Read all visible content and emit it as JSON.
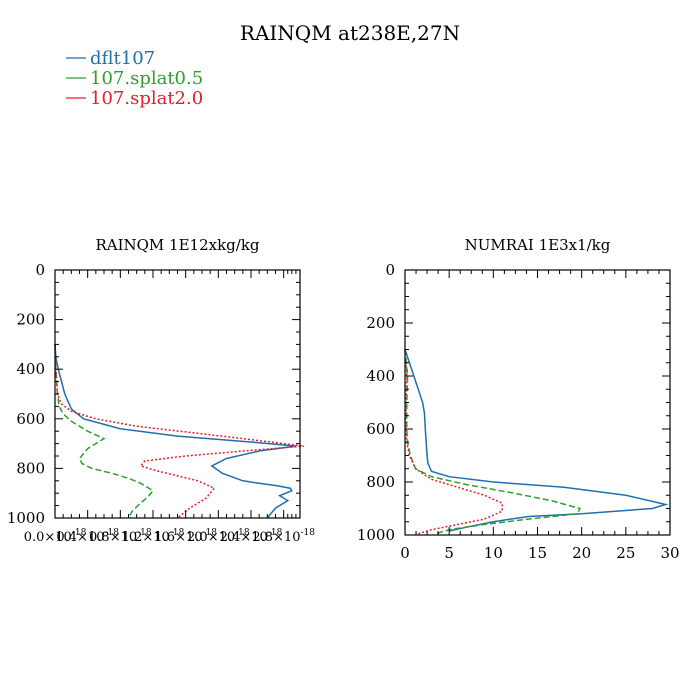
{
  "title": "RAINQM at238E,27N",
  "legend": [
    {
      "label": "dflt107",
      "color": "#1f6fae"
    },
    {
      "label": "107.splat0.5",
      "color": "#2ca02c"
    },
    {
      "label": "107.splat2.0",
      "color": "#e0202a"
    }
  ],
  "chart_data": [
    {
      "type": "line",
      "title": "RAINQM  1E12xkg/kg",
      "xlabel": "",
      "ylabel": "",
      "xlim": [
        0,
        3e-18
      ],
      "ylim": [
        0,
        1000
      ],
      "y_inverted": true,
      "x_ticks": [
        0,
        4e-19,
        8e-19,
        1.2e-18,
        1.6e-18,
        2e-18,
        2.4e-18,
        2.8e-18
      ],
      "x_tick_labels": [
        "0.0×10",
        "0.4×10",
        "0.8×10",
        "1.2×10",
        "1.6×10",
        "2.0×10",
        "2.4×10",
        "2.8×10"
      ],
      "x_tick_exponent": "-18",
      "y_ticks": [
        0,
        200,
        400,
        600,
        800,
        1000
      ],
      "y_tick_labels": [
        "0",
        "200",
        "400",
        "600",
        "800",
        "1000"
      ],
      "series": [
        {
          "name": "dflt107",
          "color": "#1f6fae",
          "dash": "solid",
          "x": [
            0,
            1e-20,
            4e-20,
            8e-20,
            1.2e-19,
            2e-19,
            3.5e-19,
            8e-19,
            1.5e-18,
            2.45e-18,
            2.95e-18,
            2.5e-18,
            2.1e-18,
            1.92e-18,
            2.05e-18,
            2.3e-18,
            2.5e-18,
            2.72e-18,
            2.88e-18,
            2.9e-18,
            2.75e-18,
            2.85e-18,
            2.7e-18,
            2.6e-18
          ],
          "y": [
            300,
            350,
            400,
            450,
            500,
            560,
            600,
            640,
            670,
            695,
            710,
            730,
            760,
            790,
            820,
            850,
            860,
            870,
            880,
            890,
            910,
            930,
            960,
            1000
          ]
        },
        {
          "name": "107.splat0.5",
          "color": "#2ca02c",
          "dash": "dashed",
          "x": [
            0,
            1e-20,
            3e-20,
            5e-20,
            1e-19,
            2e-19,
            4e-19,
            6e-19,
            4e-19,
            3e-19,
            3.3e-19,
            4.5e-19,
            7e-19,
            9e-19,
            1.05e-18,
            1.2e-18,
            1.15e-18,
            1.05e-18,
            9.5e-19,
            9e-19
          ],
          "y": [
            300,
            400,
            500,
            550,
            580,
            610,
            650,
            680,
            720,
            760,
            780,
            800,
            820,
            840,
            860,
            890,
            910,
            940,
            970,
            1000
          ]
        },
        {
          "name": "107.splat2.0",
          "color": "#e0202a",
          "dash": "dotted",
          "x": [
            0,
            1e-20,
            3e-20,
            8e-20,
            2e-19,
            5e-19,
            1e-18,
            2.05e-18,
            3.05e-18,
            2.3e-18,
            1.6e-18,
            1.1e-18,
            1.05e-18,
            1.25e-18,
            1.5e-18,
            1.75e-18,
            1.95e-18,
            1.85e-18,
            1.65e-18,
            1.5e-18
          ],
          "y": [
            300,
            400,
            500,
            540,
            570,
            600,
            630,
            670,
            710,
            730,
            750,
            770,
            790,
            810,
            830,
            850,
            880,
            920,
            960,
            1000
          ]
        }
      ]
    },
    {
      "type": "line",
      "title": "NUMRAI  1E3x1/kg",
      "xlabel": "",
      "ylabel": "",
      "xlim": [
        0,
        30
      ],
      "ylim": [
        0,
        1000
      ],
      "y_inverted": true,
      "x_ticks": [
        0,
        5,
        10,
        15,
        20,
        25,
        30
      ],
      "x_tick_labels": [
        "0",
        "5",
        "10",
        "15",
        "20",
        "25",
        "30"
      ],
      "y_ticks": [
        0,
        200,
        400,
        600,
        800,
        1000
      ],
      "y_tick_labels": [
        "0",
        "200",
        "400",
        "600",
        "800",
        "1000"
      ],
      "series": [
        {
          "name": "dflt107",
          "color": "#1f6fae",
          "dash": "solid",
          "x": [
            0,
            0.5,
            1,
            1.5,
            2,
            2.2,
            2.3,
            2.4,
            2.5,
            2.6,
            3,
            5,
            10,
            18,
            25,
            29.5,
            28,
            20,
            14,
            10,
            7,
            5
          ],
          "y": [
            300,
            350,
            400,
            450,
            500,
            540,
            600,
            650,
            700,
            730,
            760,
            780,
            800,
            820,
            850,
            885,
            900,
            920,
            930,
            950,
            970,
            985
          ]
        },
        {
          "name": "107.splat0.5",
          "color": "#2ca02c",
          "dash": "dashed",
          "x": [
            0,
            0.3,
            0.2,
            0.2,
            0.3,
            0.6,
            1.2,
            3,
            7,
            12,
            16.5,
            19.8,
            19.5,
            14,
            9,
            5,
            3.5
          ],
          "y": [
            300,
            400,
            500,
            600,
            650,
            700,
            750,
            780,
            810,
            840,
            870,
            900,
            920,
            940,
            960,
            980,
            995
          ]
        },
        {
          "name": "107.splat2.0",
          "color": "#e0202a",
          "dash": "dotted",
          "x": [
            0,
            0.2,
            0.1,
            0.1,
            0.2,
            0.5,
            1.2,
            3,
            6,
            9,
            11,
            11,
            9,
            6,
            3,
            1.5
          ],
          "y": [
            300,
            400,
            500,
            600,
            650,
            700,
            750,
            790,
            820,
            850,
            880,
            910,
            940,
            960,
            980,
            995
          ]
        }
      ]
    }
  ]
}
